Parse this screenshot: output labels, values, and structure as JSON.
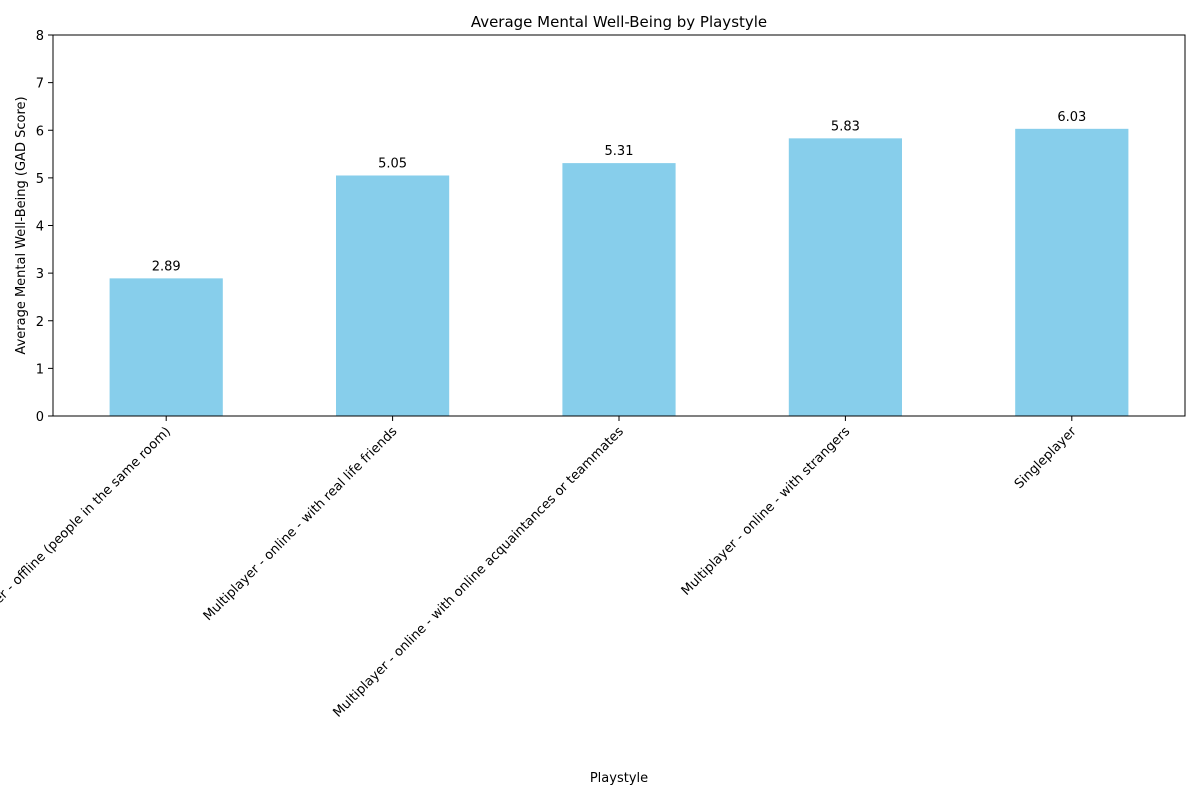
{
  "chart_data": {
    "type": "bar",
    "title": "Average Mental Well-Being by Playstyle",
    "xlabel": "Playstyle",
    "ylabel": "Average Mental Well-Being (GAD Score)",
    "categories": [
      "Multiplayer - offline (people in the same room)",
      "Multiplayer - online - with real life friends",
      "Multiplayer - online - with online acquaintances or teammates",
      "Multiplayer - online - with strangers",
      "Singleplayer"
    ],
    "values": [
      2.89,
      5.05,
      5.31,
      5.83,
      6.03
    ],
    "value_labels": [
      "2.89",
      "5.05",
      "5.31",
      "5.83",
      "6.03"
    ],
    "ylim": [
      0,
      8
    ],
    "yticks": [
      0,
      1,
      2,
      3,
      4,
      5,
      6,
      7,
      8
    ],
    "bar_color": "#87ceeb",
    "grid": false,
    "xtick_rotation": 45
  }
}
